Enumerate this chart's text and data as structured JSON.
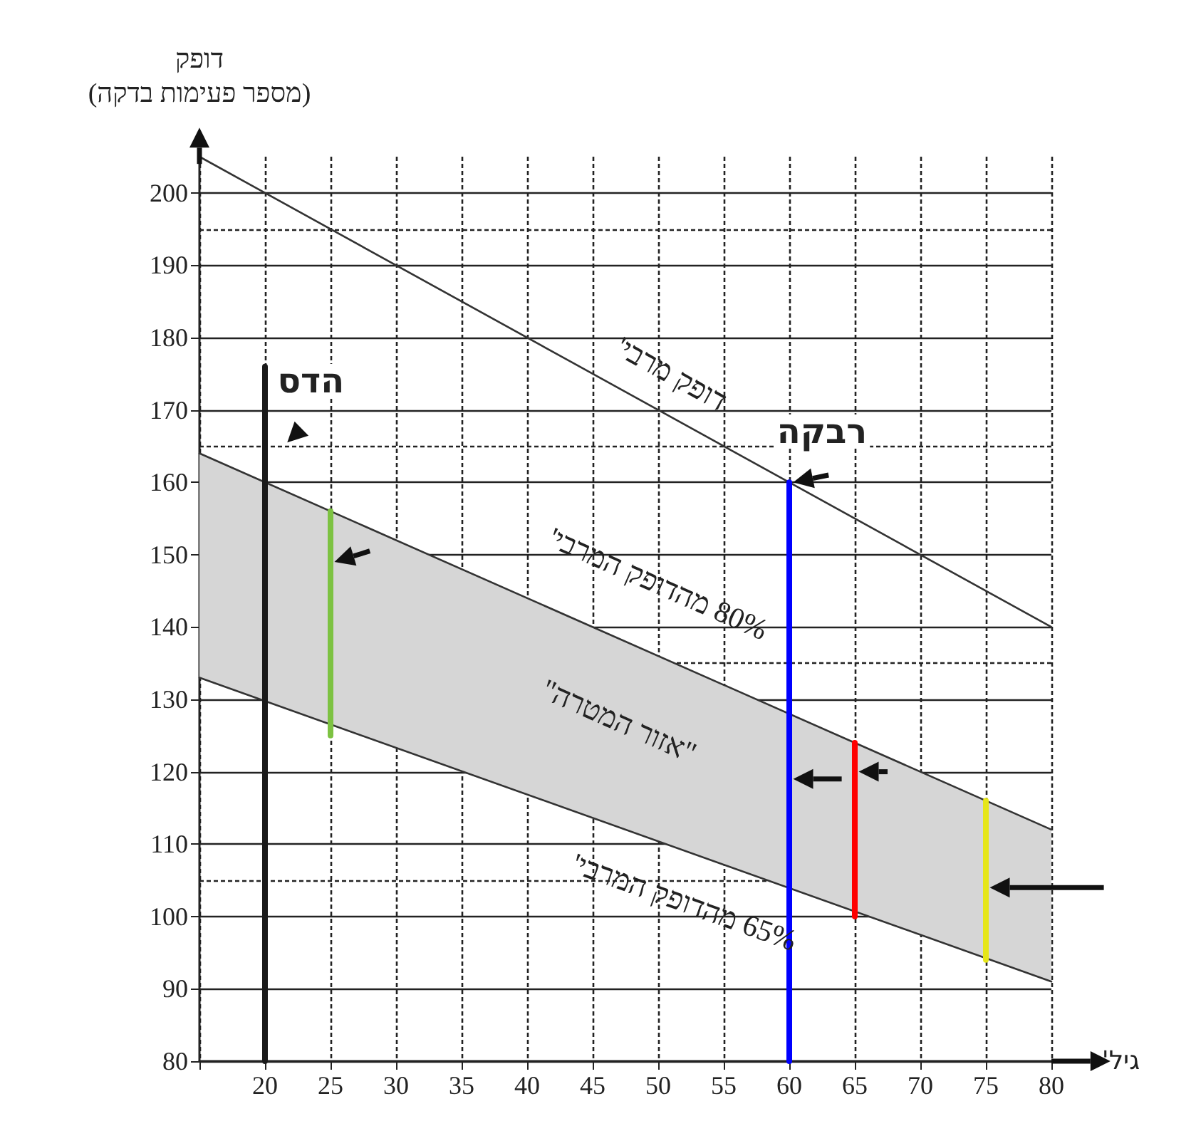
{
  "chart_data": {
    "type": "line",
    "xlabel": "גיל'",
    "ylabel": "דופק\n(מספר פעימות בדקה)",
    "xlim": [
      15,
      80
    ],
    "xticks": [
      {
        "value": 15,
        "label": null
      },
      20,
      25,
      30,
      35,
      40,
      45,
      50,
      55,
      60,
      65,
      70,
      75,
      80
    ],
    "ylim": [
      80,
      205
    ],
    "yticks": [
      80,
      90,
      100,
      110,
      120,
      130,
      140,
      150,
      160,
      170,
      180,
      190,
      200
    ],
    "grid": true,
    "marker": "none",
    "line_style": "solid",
    "series": [
      {
        "color": "#333333",
        "x": [
          15,
          80
        ],
        "values": [
          205,
          140
        ]
      },
      {
        "color": "#333333",
        "x": [
          15,
          80
        ],
        "values": [
          164,
          112
        ],
        "lower": [
          133,
          91
        ],
        "upper": [
          164,
          112
        ]
      },
      {
        "color": "#333333",
        "x": [
          15,
          80
        ],
        "values": [
          133,
          91
        ]
      },
      {
        "color": "#1a1a1a",
        "x": [
          20,
          20
        ],
        "values": [
          80,
          176
        ]
      },
      {
        "color": "#7dc242",
        "x": [
          25,
          25
        ],
        "values": [
          125,
          156
        ]
      },
      {
        "color": "#0000ff",
        "x": [
          60,
          60
        ],
        "values": [
          80,
          160
        ]
      },
      {
        "color": "#ff0000",
        "x": [
          65,
          65
        ],
        "values": [
          100,
          124
        ]
      },
      {
        "color": "#e6e619",
        "x": [
          75,
          75
        ],
        "values": [
          94,
          116
        ]
      }
    ],
    "annotations": [
      "דופק מרבי'",
      "80% מהדופק המרבי'",
      "\"אזור המטרה\"",
      "65% מהדופק המרבי'",
      "הדס",
      "רבקה"
    ]
  }
}
